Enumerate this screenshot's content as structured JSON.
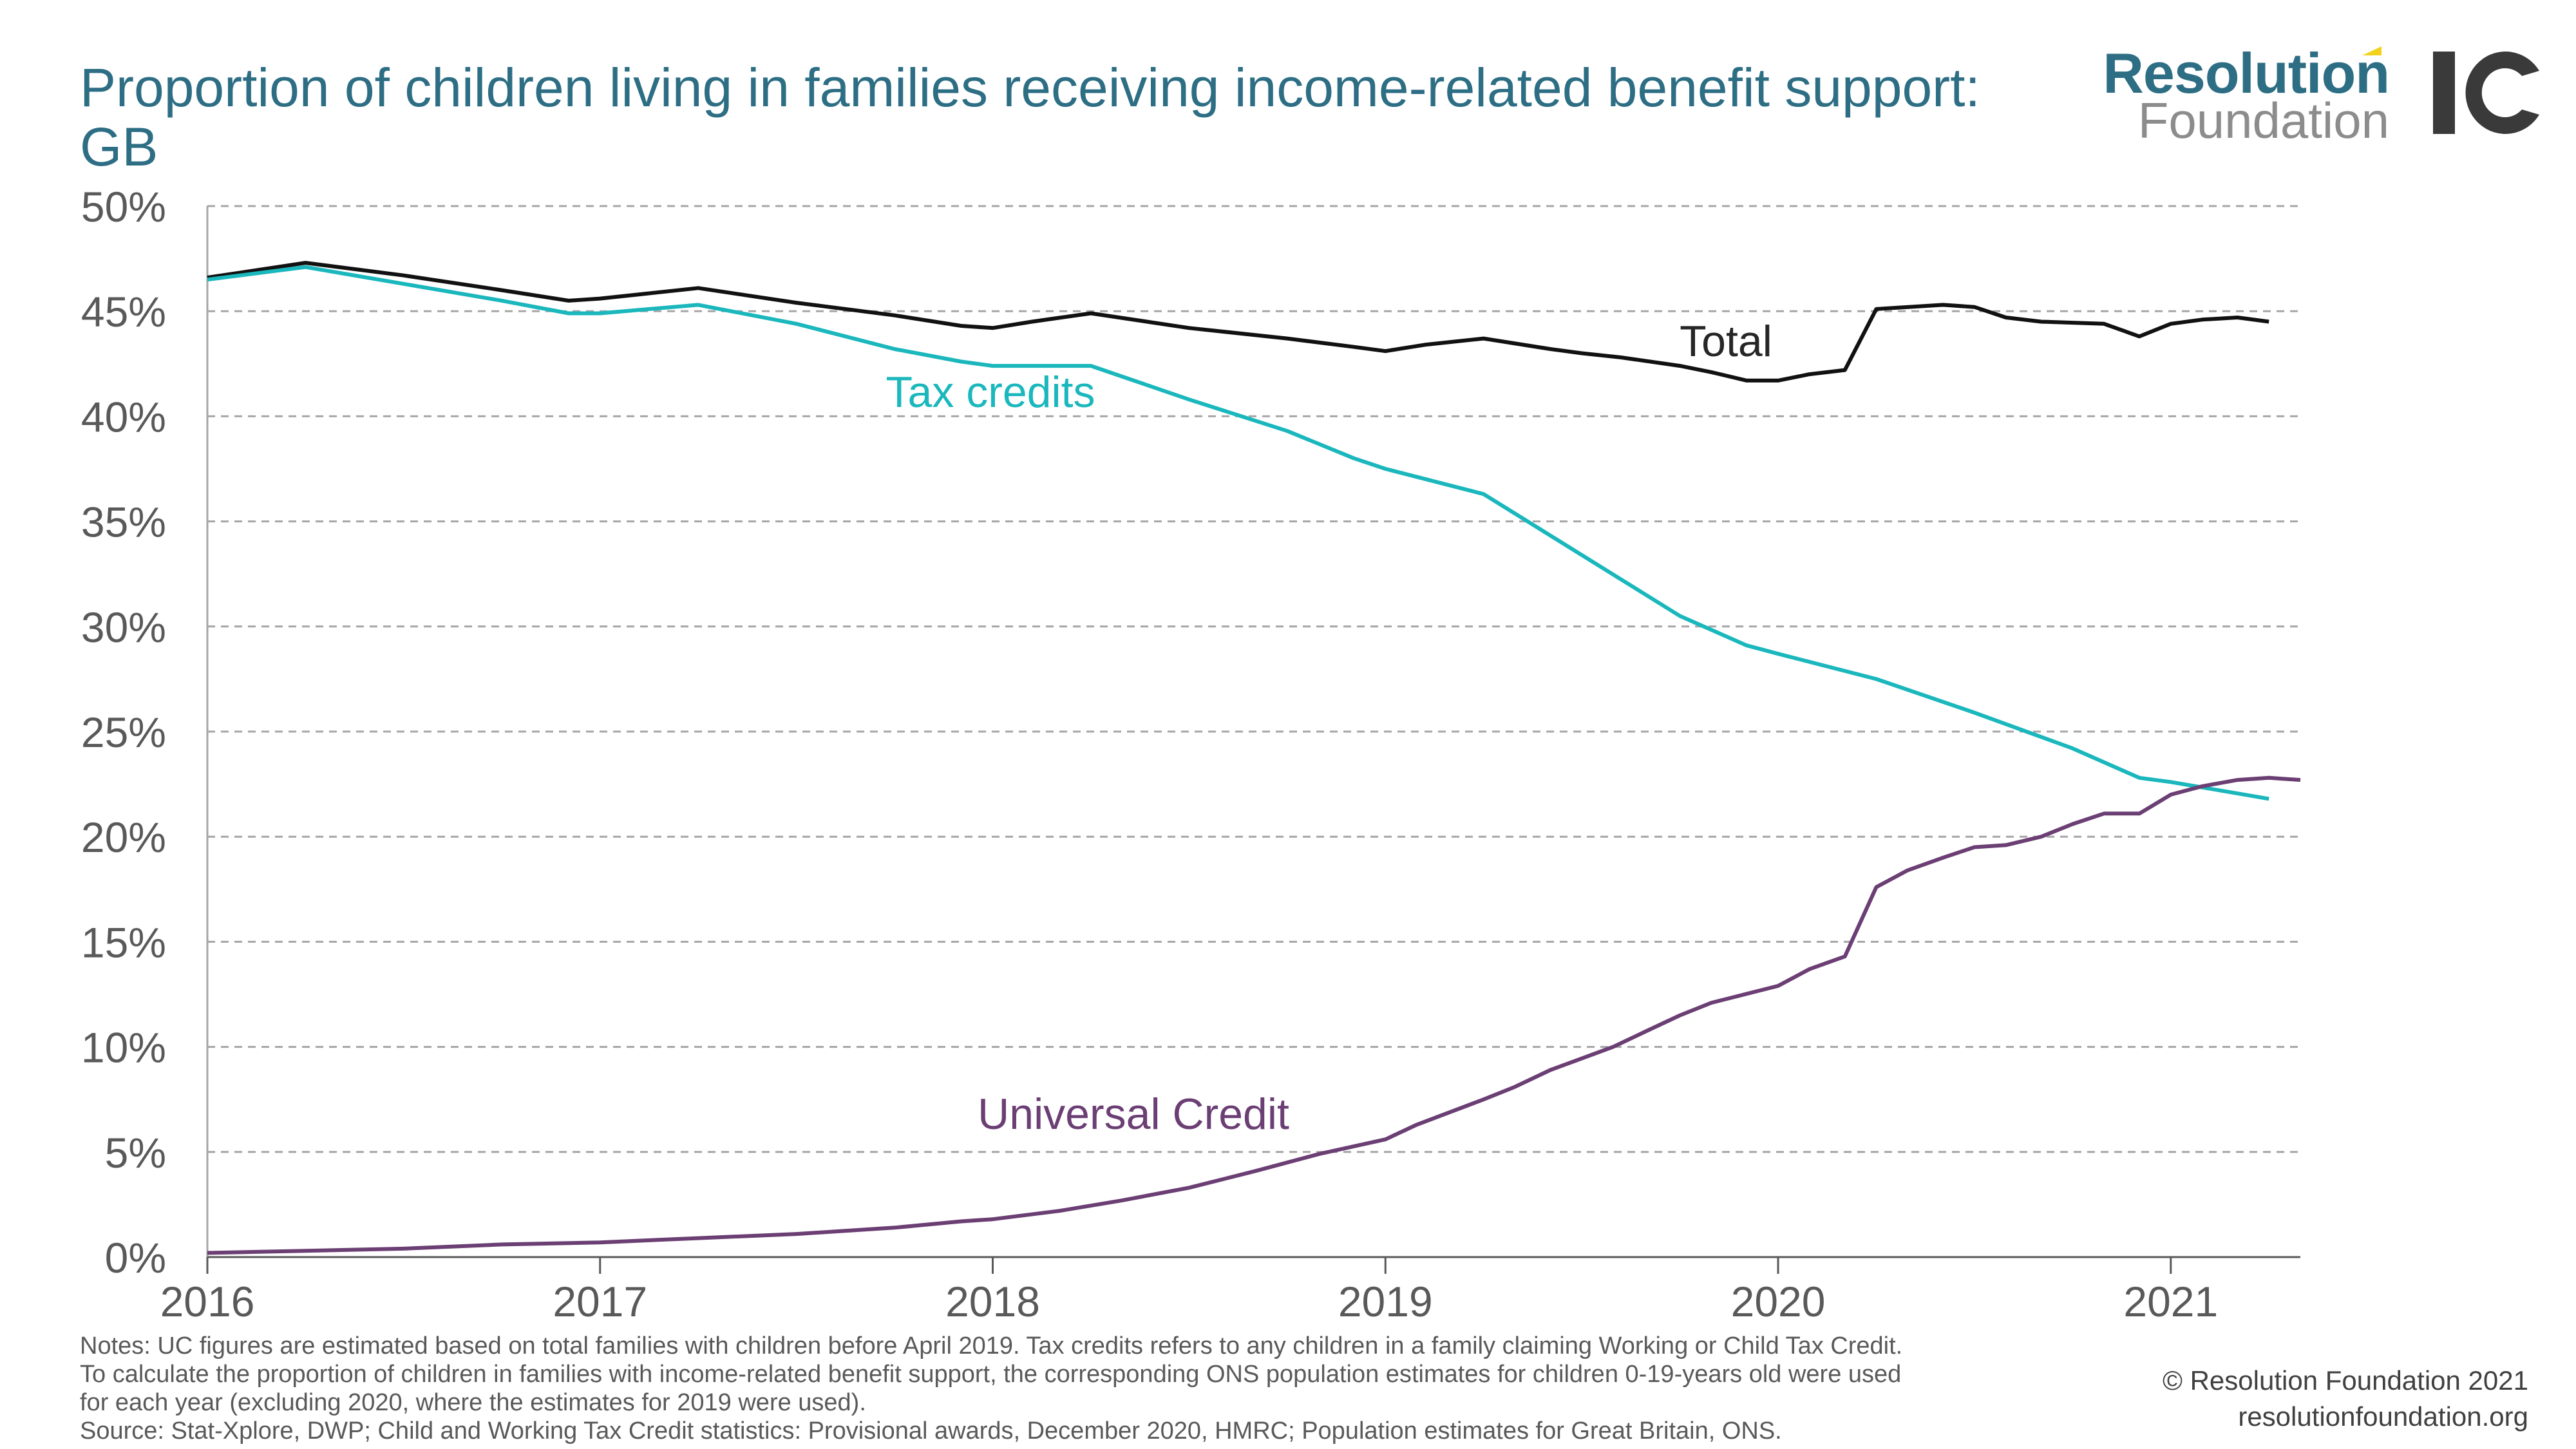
{
  "title": "Proportion of children living in families receiving income-related benefit support: GB",
  "logo": {
    "word1": "Resolution",
    "word2": "Foundation",
    "word1_color": "#2d6e84",
    "word2_color": "#8c8c8c",
    "accent_color": "#f2d21c",
    "mark_color": "#3a3a3a"
  },
  "colors": {
    "title": "#2d6e84",
    "total": "#111111",
    "tax_credits": "#1ab7bd",
    "universal_credit": "#6b3f74",
    "grid": "#a6a6a6",
    "axis_text": "#595959"
  },
  "chart_data": {
    "type": "line",
    "title": "Proportion of children living in families receiving income-related benefit support: GB",
    "xlabel": "",
    "ylabel": "",
    "xlim": [
      2016.0,
      2021.33
    ],
    "ylim": [
      0,
      50
    ],
    "x_ticks": [
      2016,
      2017,
      2018,
      2019,
      2020,
      2021
    ],
    "x_tick_labels": [
      "2016",
      "2017",
      "2018",
      "2019",
      "2020",
      "2021"
    ],
    "y_ticks": [
      0,
      5,
      10,
      15,
      20,
      25,
      30,
      35,
      40,
      45,
      50
    ],
    "y_tick_labels": [
      "0%",
      "5%",
      "10%",
      "15%",
      "20%",
      "25%",
      "30%",
      "35%",
      "40%",
      "45%",
      "50%"
    ],
    "grid": "horizontal dashed",
    "legend": "none",
    "series": [
      {
        "name": "Total",
        "key": "total",
        "points": [
          [
            2016.0,
            46.6
          ],
          [
            2016.25,
            47.3
          ],
          [
            2016.5,
            46.7
          ],
          [
            2016.75,
            46.0
          ],
          [
            2016.92,
            45.5
          ],
          [
            2017.0,
            45.6
          ],
          [
            2017.1,
            45.8
          ],
          [
            2017.25,
            46.1
          ],
          [
            2017.5,
            45.4
          ],
          [
            2017.75,
            44.8
          ],
          [
            2017.92,
            44.3
          ],
          [
            2018.0,
            44.2
          ],
          [
            2018.1,
            44.5
          ],
          [
            2018.25,
            44.9
          ],
          [
            2018.5,
            44.2
          ],
          [
            2018.75,
            43.7
          ],
          [
            2018.92,
            43.3
          ],
          [
            2019.0,
            43.1
          ],
          [
            2019.1,
            43.4
          ],
          [
            2019.25,
            43.7
          ],
          [
            2019.42,
            43.2
          ],
          [
            2019.5,
            43.0
          ],
          [
            2019.6,
            42.8
          ],
          [
            2019.75,
            42.4
          ],
          [
            2019.83,
            42.1
          ],
          [
            2019.92,
            41.7
          ],
          [
            2020.0,
            41.7
          ],
          [
            2020.08,
            42.0
          ],
          [
            2020.17,
            42.2
          ],
          [
            2020.25,
            45.1
          ],
          [
            2020.42,
            45.3
          ],
          [
            2020.5,
            45.2
          ],
          [
            2020.58,
            44.7
          ],
          [
            2020.67,
            44.5
          ],
          [
            2020.83,
            44.4
          ],
          [
            2020.92,
            43.8
          ],
          [
            2021.0,
            44.4
          ],
          [
            2021.08,
            44.6
          ],
          [
            2021.17,
            44.7
          ],
          [
            2021.25,
            44.5
          ]
        ]
      },
      {
        "name": "Tax credits",
        "key": "tax_credits",
        "points": [
          [
            2016.0,
            46.5
          ],
          [
            2016.25,
            47.1
          ],
          [
            2016.5,
            46.3
          ],
          [
            2016.75,
            45.5
          ],
          [
            2016.92,
            44.9
          ],
          [
            2017.0,
            44.9
          ],
          [
            2017.25,
            45.3
          ],
          [
            2017.5,
            44.4
          ],
          [
            2017.75,
            43.2
          ],
          [
            2017.92,
            42.6
          ],
          [
            2018.0,
            42.4
          ],
          [
            2018.25,
            42.4
          ],
          [
            2018.5,
            40.8
          ],
          [
            2018.75,
            39.3
          ],
          [
            2018.92,
            38.0
          ],
          [
            2019.0,
            37.5
          ],
          [
            2019.25,
            36.3
          ],
          [
            2019.5,
            33.4
          ],
          [
            2019.75,
            30.5
          ],
          [
            2019.92,
            29.1
          ],
          [
            2020.0,
            28.7
          ],
          [
            2020.25,
            27.5
          ],
          [
            2020.5,
            25.9
          ],
          [
            2020.75,
            24.2
          ],
          [
            2020.92,
            22.8
          ],
          [
            2021.0,
            22.6
          ],
          [
            2021.25,
            21.8
          ]
        ]
      },
      {
        "name": "Universal Credit",
        "key": "universal_credit",
        "points": [
          [
            2016.0,
            0.2
          ],
          [
            2016.25,
            0.3
          ],
          [
            2016.5,
            0.4
          ],
          [
            2016.75,
            0.6
          ],
          [
            2017.0,
            0.7
          ],
          [
            2017.25,
            0.9
          ],
          [
            2017.5,
            1.1
          ],
          [
            2017.75,
            1.4
          ],
          [
            2017.92,
            1.7
          ],
          [
            2018.0,
            1.8
          ],
          [
            2018.17,
            2.2
          ],
          [
            2018.33,
            2.7
          ],
          [
            2018.5,
            3.3
          ],
          [
            2018.67,
            4.1
          ],
          [
            2018.83,
            4.9
          ],
          [
            2019.0,
            5.6
          ],
          [
            2019.08,
            6.3
          ],
          [
            2019.25,
            7.5
          ],
          [
            2019.33,
            8.1
          ],
          [
            2019.42,
            8.9
          ],
          [
            2019.58,
            10.0
          ],
          [
            2019.67,
            10.8
          ],
          [
            2019.75,
            11.5
          ],
          [
            2019.83,
            12.1
          ],
          [
            2020.0,
            12.9
          ],
          [
            2020.08,
            13.7
          ],
          [
            2020.17,
            14.3
          ],
          [
            2020.25,
            17.6
          ],
          [
            2020.33,
            18.4
          ],
          [
            2020.42,
            19.0
          ],
          [
            2020.5,
            19.5
          ],
          [
            2020.58,
            19.6
          ],
          [
            2020.67,
            20.0
          ],
          [
            2020.75,
            20.6
          ],
          [
            2020.83,
            21.1
          ],
          [
            2020.92,
            21.1
          ],
          [
            2021.0,
            22.0
          ],
          [
            2021.08,
            22.4
          ],
          [
            2021.17,
            22.7
          ],
          [
            2021.25,
            22.8
          ],
          [
            2021.33,
            22.7
          ]
        ]
      }
    ],
    "annotations": [
      {
        "text": "Total",
        "series": "total"
      },
      {
        "text": "Tax credits",
        "series": "tax_credits"
      },
      {
        "text": "Universal Credit",
        "series": "universal_credit"
      }
    ]
  },
  "notes": [
    "Notes: UC figures are estimated based on total families with children before April 2019. Tax credits refers to any children in a family claiming Working or Child Tax Credit.",
    "To calculate the proportion of children in families with income-related benefit support, the corresponding ONS population estimates for children 0-19-years old were used",
    "for each year (excluding 2020, where the estimates for 2019 were used).",
    "Source: Stat-Xplore, DWP; Child and Working Tax Credit statistics: Provisional awards, December 2020, HMRC; Population estimates for Great Britain, ONS."
  ],
  "credit": {
    "line1": "© Resolution Foundation 2021",
    "line2": "resolutionfoundation.org"
  }
}
